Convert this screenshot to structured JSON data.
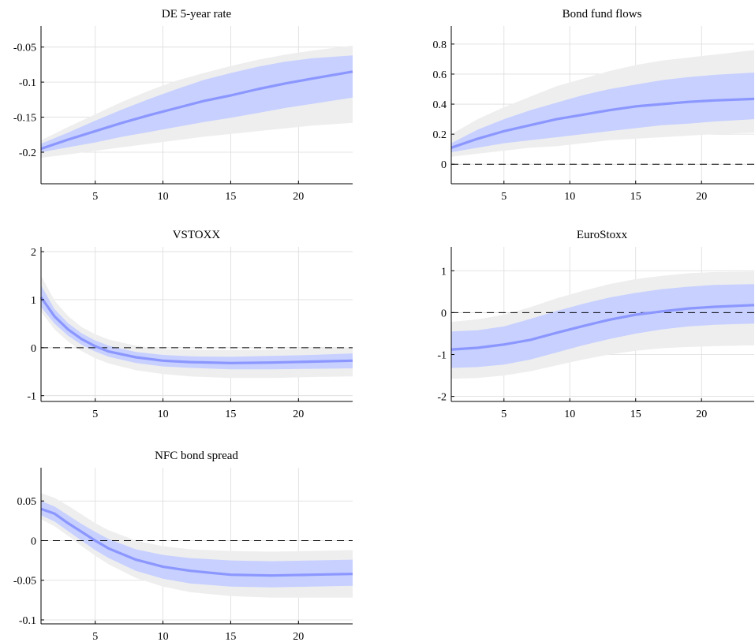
{
  "figure": {
    "colors": {
      "outer_band": "#eeeeee",
      "inner_band": "#c7d0ff",
      "median_line": "#8b97ff",
      "zero_line": "#000000",
      "grid": "#dcdcdc"
    }
  },
  "chart_data": [
    {
      "type": "line",
      "title": "DE 5-year rate",
      "xlabel": "",
      "ylabel": "",
      "xlim": [
        1,
        24
      ],
      "ylim": [
        -0.245,
        -0.02
      ],
      "xticks": [
        5,
        10,
        15,
        20
      ],
      "yticks": [
        -0.2,
        -0.15,
        -0.1,
        -0.05
      ],
      "ytick_labels": [
        "-0.2",
        "-0.15",
        "-0.1",
        "-0.05"
      ],
      "zero_line": false,
      "grid": true,
      "x": [
        1,
        3,
        5,
        7,
        9,
        11,
        13,
        15,
        17,
        19,
        21,
        24
      ],
      "median": [
        -0.195,
        -0.182,
        -0.17,
        -0.158,
        -0.147,
        -0.137,
        -0.127,
        -0.119,
        -0.11,
        -0.102,
        -0.095,
        -0.085
      ],
      "band_68_low": [
        -0.2,
        -0.193,
        -0.186,
        -0.178,
        -0.171,
        -0.164,
        -0.157,
        -0.151,
        -0.144,
        -0.137,
        -0.131,
        -0.122
      ],
      "band_68_high": [
        -0.188,
        -0.172,
        -0.155,
        -0.139,
        -0.124,
        -0.11,
        -0.097,
        -0.087,
        -0.078,
        -0.071,
        -0.066,
        -0.062
      ],
      "band_90_low": [
        -0.208,
        -0.203,
        -0.198,
        -0.193,
        -0.188,
        -0.183,
        -0.178,
        -0.174,
        -0.17,
        -0.166,
        -0.162,
        -0.158
      ],
      "band_90_high": [
        -0.183,
        -0.164,
        -0.146,
        -0.128,
        -0.112,
        -0.098,
        -0.087,
        -0.077,
        -0.068,
        -0.061,
        -0.055,
        -0.048
      ]
    },
    {
      "type": "line",
      "title": "Bond fund flows",
      "xlabel": "",
      "ylabel": "",
      "xlim": [
        1,
        24
      ],
      "ylim": [
        -0.13,
        0.92
      ],
      "xticks": [
        5,
        10,
        15,
        20
      ],
      "yticks": [
        0,
        0.2,
        0.4,
        0.6,
        0.8
      ],
      "ytick_labels": [
        "0",
        "0.2",
        "0.4",
        "0.6",
        "0.8"
      ],
      "zero_line": true,
      "grid": true,
      "x": [
        1,
        3,
        5,
        7,
        9,
        11,
        13,
        15,
        17,
        19,
        21,
        24
      ],
      "median": [
        0.11,
        0.17,
        0.22,
        0.26,
        0.3,
        0.33,
        0.36,
        0.385,
        0.4,
        0.415,
        0.425,
        0.435
      ],
      "band_68_low": [
        0.08,
        0.11,
        0.14,
        0.16,
        0.18,
        0.2,
        0.22,
        0.24,
        0.26,
        0.27,
        0.285,
        0.3
      ],
      "band_68_high": [
        0.14,
        0.23,
        0.3,
        0.36,
        0.41,
        0.46,
        0.5,
        0.53,
        0.56,
        0.58,
        0.595,
        0.61
      ],
      "band_90_low": [
        0.05,
        0.07,
        0.09,
        0.11,
        0.12,
        0.14,
        0.16,
        0.17,
        0.18,
        0.19,
        0.2,
        0.21
      ],
      "band_90_high": [
        0.2,
        0.3,
        0.38,
        0.45,
        0.52,
        0.57,
        0.62,
        0.66,
        0.69,
        0.71,
        0.73,
        0.76
      ]
    },
    {
      "type": "line",
      "title": "VSTOXX",
      "xlabel": "",
      "ylabel": "",
      "xlim": [
        1,
        24
      ],
      "ylim": [
        -1.12,
        2.1
      ],
      "xticks": [
        5,
        10,
        15,
        20
      ],
      "yticks": [
        -1,
        0,
        1,
        2
      ],
      "ytick_labels": [
        "-1",
        "0",
        "1",
        "2"
      ],
      "zero_line": true,
      "grid": true,
      "x": [
        1,
        2,
        3,
        4,
        5,
        6,
        8,
        10,
        12,
        15,
        18,
        21,
        24
      ],
      "median": [
        1.05,
        0.65,
        0.38,
        0.18,
        0.03,
        -0.08,
        -0.2,
        -0.27,
        -0.3,
        -0.32,
        -0.31,
        -0.29,
        -0.27
      ],
      "band_68_low": [
        0.85,
        0.5,
        0.25,
        0.06,
        -0.08,
        -0.19,
        -0.32,
        -0.39,
        -0.42,
        -0.45,
        -0.45,
        -0.44,
        -0.43
      ],
      "band_68_high": [
        1.3,
        0.8,
        0.51,
        0.3,
        0.15,
        0.04,
        -0.09,
        -0.15,
        -0.18,
        -0.19,
        -0.17,
        -0.15,
        -0.12
      ],
      "band_90_low": [
        0.75,
        0.38,
        0.13,
        -0.07,
        -0.22,
        -0.33,
        -0.47,
        -0.55,
        -0.6,
        -0.63,
        -0.63,
        -0.61,
        -0.6
      ],
      "band_90_high": [
        1.5,
        0.98,
        0.66,
        0.43,
        0.28,
        0.17,
        0.04,
        -0.03,
        -0.04,
        -0.05,
        -0.04,
        -0.02,
        0.01
      ]
    },
    {
      "type": "line",
      "title": "EuroStoxx",
      "xlabel": "",
      "ylabel": "",
      "xlim": [
        1,
        24
      ],
      "ylim": [
        -2.12,
        1.57
      ],
      "xticks": [
        5,
        10,
        15,
        20
      ],
      "yticks": [
        -2,
        -1,
        0,
        1
      ],
      "ytick_labels": [
        "-2",
        "-1",
        "0",
        "1"
      ],
      "zero_line": true,
      "grid": true,
      "x": [
        1,
        3,
        5,
        7,
        9,
        11,
        13,
        15,
        17,
        19,
        21,
        24
      ],
      "median": [
        -0.88,
        -0.84,
        -0.76,
        -0.65,
        -0.48,
        -0.32,
        -0.17,
        -0.05,
        0.03,
        0.1,
        0.14,
        0.18
      ],
      "band_68_low": [
        -1.32,
        -1.3,
        -1.24,
        -1.12,
        -0.95,
        -0.78,
        -0.63,
        -0.5,
        -0.4,
        -0.33,
        -0.29,
        -0.26
      ],
      "band_68_high": [
        -0.45,
        -0.42,
        -0.33,
        -0.15,
        0.04,
        0.21,
        0.36,
        0.47,
        0.56,
        0.62,
        0.66,
        0.68
      ],
      "band_90_low": [
        -1.58,
        -1.56,
        -1.5,
        -1.4,
        -1.26,
        -1.12,
        -1.0,
        -0.91,
        -0.85,
        -0.82,
        -0.8,
        -0.78
      ],
      "band_90_high": [
        -0.22,
        -0.16,
        -0.05,
        0.13,
        0.34,
        0.52,
        0.68,
        0.8,
        0.88,
        0.94,
        0.97,
        0.98
      ]
    },
    {
      "type": "line",
      "title": "NFC bond spread",
      "xlabel": "",
      "ylabel": "",
      "xlim": [
        1,
        24
      ],
      "ylim": [
        -0.105,
        0.092
      ],
      "xticks": [
        5,
        10,
        15,
        20
      ],
      "yticks": [
        -0.1,
        -0.05,
        0,
        0.05
      ],
      "ytick_labels": [
        "-0.1",
        "-0.05",
        "0",
        "0.05"
      ],
      "zero_line": true,
      "grid": true,
      "x": [
        1,
        2,
        3,
        4,
        5,
        6,
        8,
        10,
        12,
        15,
        18,
        21,
        24
      ],
      "median": [
        0.04,
        0.034,
        0.022,
        0.011,
        0.0,
        -0.01,
        -0.024,
        -0.033,
        -0.038,
        -0.043,
        -0.044,
        -0.043,
        -0.042
      ],
      "band_68_low": [
        0.032,
        0.024,
        0.012,
        0.0,
        -0.012,
        -0.022,
        -0.038,
        -0.048,
        -0.054,
        -0.058,
        -0.059,
        -0.058,
        -0.057
      ],
      "band_68_high": [
        0.05,
        0.043,
        0.032,
        0.021,
        0.011,
        0.002,
        -0.011,
        -0.018,
        -0.022,
        -0.025,
        -0.026,
        -0.025,
        -0.024
      ],
      "band_90_low": [
        0.027,
        0.018,
        0.006,
        -0.007,
        -0.019,
        -0.03,
        -0.047,
        -0.058,
        -0.065,
        -0.07,
        -0.072,
        -0.072,
        -0.072
      ],
      "band_90_high": [
        0.06,
        0.054,
        0.044,
        0.033,
        0.022,
        0.013,
        0.0,
        -0.007,
        -0.011,
        -0.013,
        -0.014,
        -0.013,
        -0.012
      ]
    }
  ]
}
